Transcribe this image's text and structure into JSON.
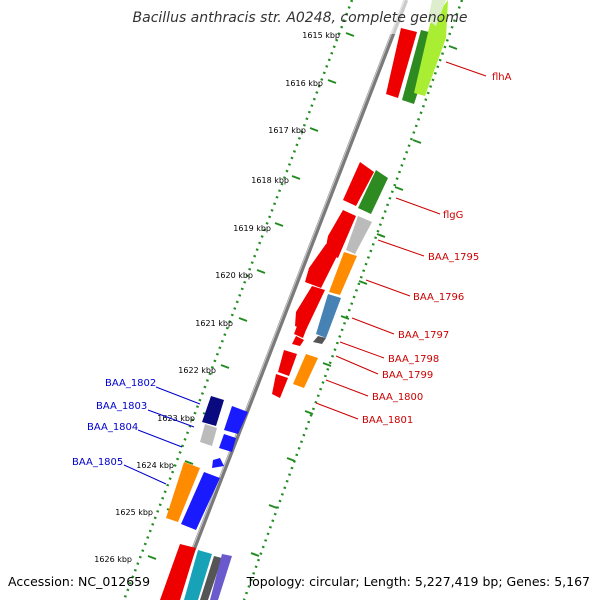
{
  "title": "Bacillus anthracis str. A0248, complete genome",
  "footer": {
    "accession": "Accession: NC_012659",
    "summary": "Topology: circular; Length: 5,227,419 bp; Genes: 5,167"
  },
  "ticks": [
    "1615 kbp",
    "1616 kbp",
    "1617 kbp",
    "1618 kbp",
    "1619 kbp",
    "1620 kbp",
    "1621 kbp",
    "1622 kbp",
    "1623 kbp",
    "1624 kbp",
    "1625 kbp",
    "1626 kbp"
  ],
  "colors": {
    "forward_label": "#cc0000",
    "reverse_label": "#0000cc",
    "backbone": "#888888",
    "ruler": "#228b22",
    "cds_red": "#ee0000",
    "cds_blue": "#1a1aff",
    "cds_navy": "#0a0a80",
    "cds_orange": "#ff8c00",
    "cds_green": "#2e8b22",
    "cds_lightgreen": "#aaee33",
    "cds_gray": "#bbbbbb",
    "cds_steel": "#4682b4",
    "cds_dark": "#555555"
  },
  "forward_genes": [
    "flhA",
    "flgG",
    "BAA_1795",
    "BAA_1796",
    "BAA_1797",
    "BAA_1798",
    "BAA_1799",
    "BAA_1800",
    "BAA_1801"
  ],
  "reverse_genes": [
    "BAA_1802",
    "BAA_1803",
    "BAA_1804",
    "BAA_1805"
  ]
}
